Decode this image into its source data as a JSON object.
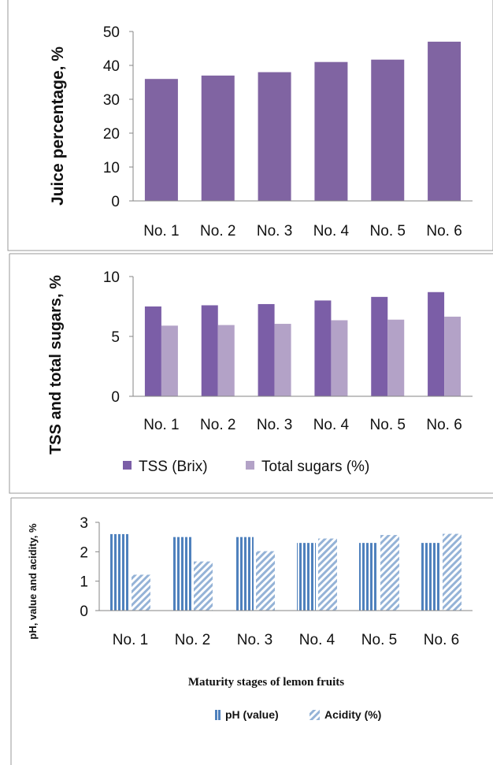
{
  "chart_data": [
    {
      "type": "bar",
      "categories": [
        "No. 1",
        "No. 2",
        "No. 3",
        "No. 4",
        "No. 5",
        "No. 6"
      ],
      "series": [
        {
          "values": [
            36,
            37,
            38,
            41,
            41.7,
            47
          ]
        }
      ],
      "xlabel": "",
      "ylabel": "Juice percentage, %",
      "ylim": [
        0,
        50
      ],
      "yticks": [
        "0",
        "10",
        "20",
        "30",
        "40",
        "50"
      ],
      "legend": "none",
      "grid": false,
      "colors": [
        "#8064a2"
      ]
    },
    {
      "type": "bar",
      "categories": [
        "No. 1",
        "No. 2",
        "No. 3",
        "No. 4",
        "No. 5",
        "No. 6"
      ],
      "series": [
        {
          "name": "TSS (Brix)",
          "values": [
            7.5,
            7.6,
            7.7,
            8.0,
            8.3,
            8.7
          ]
        },
        {
          "name": "Total sugars (%)",
          "values": [
            5.9,
            5.95,
            6.05,
            6.35,
            6.4,
            6.65
          ]
        }
      ],
      "xlabel": "",
      "ylabel": "TSS and total sugars, %",
      "ylim": [
        0,
        10
      ],
      "yticks": [
        "0",
        "5",
        "10"
      ],
      "legend": "bottom",
      "grid": false,
      "colors": [
        "#7b5ea7",
        "#b3a2c7"
      ]
    },
    {
      "type": "bar",
      "categories": [
        "No. 1",
        "No. 2",
        "No. 3",
        "No. 4",
        "No. 5",
        "No. 6"
      ],
      "series": [
        {
          "name": "pH (value)",
          "values": [
            2.6,
            2.5,
            2.5,
            2.3,
            2.3,
            2.3
          ]
        },
        {
          "name": "Acidity (%)",
          "values": [
            1.22,
            1.67,
            2.02,
            2.45,
            2.57,
            2.61
          ]
        }
      ],
      "xlabel": "Maturity stages of lemon fruits",
      "ylabel": "pH, value and acidity, %",
      "ylim": [
        0,
        3
      ],
      "yticks": [
        "0",
        "1",
        "2",
        "3"
      ],
      "legend": "bottom",
      "grid": false,
      "colors": [
        "#4f81bd",
        "#95b3d7"
      ]
    }
  ]
}
